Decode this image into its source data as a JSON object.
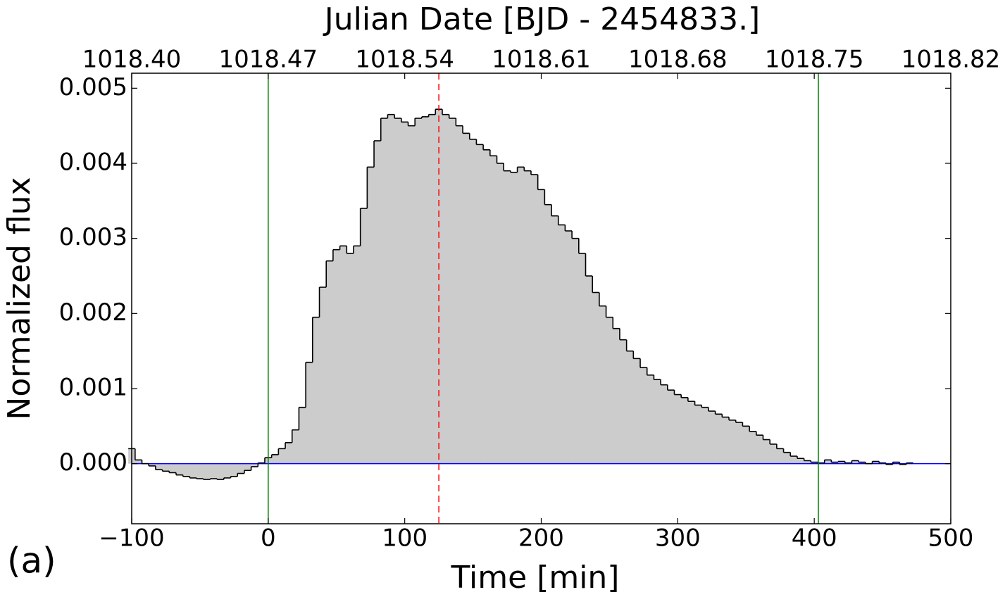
{
  "chart_data": {
    "type": "step",
    "title": "Julian Date [BJD - 2454833.]",
    "xlabel": "Time [min]",
    "ylabel": "Normalized flux",
    "panel_label": "(a)",
    "line_color": "#000000",
    "fill_color": "#cccccc",
    "xlim": [
      -100,
      500
    ],
    "ylim": [
      -0.0008,
      0.0052
    ],
    "x2lim": [
      1018.4,
      1018.82
    ],
    "xticks": [
      {
        "value": -100,
        "label": "−100"
      },
      0,
      100,
      200,
      300,
      400,
      500
    ],
    "x2ticks": [
      {
        "value": 1018.4,
        "label": "1018.40"
      },
      {
        "value": 1018.47,
        "label": "1018.47"
      },
      {
        "value": 1018.54,
        "label": "1018.54"
      },
      {
        "value": 1018.61,
        "label": "1018.61"
      },
      {
        "value": 1018.68,
        "label": "1018.68"
      },
      {
        "value": 1018.75,
        "label": "1018.75"
      },
      {
        "value": 1018.82,
        "label": "1018.82"
      }
    ],
    "yticks": [
      {
        "value": 0,
        "label": "0.000"
      },
      {
        "value": 0.001,
        "label": "0.001"
      },
      {
        "value": 0.002,
        "label": "0.002"
      },
      {
        "value": 0.003,
        "label": "0.003"
      },
      {
        "value": 0.004,
        "label": "0.004"
      },
      {
        "value": 0.005,
        "label": "0.005"
      }
    ],
    "vlines": [
      {
        "x": 0,
        "color": "#008000",
        "style": "solid"
      },
      {
        "x": 403,
        "color": "#008000",
        "style": "solid"
      },
      {
        "x": 125,
        "color": "#ff0000",
        "style": "dashed"
      }
    ],
    "hlines": [
      {
        "y": 0,
        "color": "#0000ff",
        "style": "solid"
      }
    ],
    "x": [
      -100,
      -95,
      -90,
      -85,
      -80,
      -75,
      -70,
      -65,
      -60,
      -55,
      -50,
      -45,
      -40,
      -35,
      -30,
      -25,
      -20,
      -15,
      -10,
      -5,
      0,
      5,
      10,
      15,
      20,
      25,
      30,
      35,
      40,
      45,
      50,
      55,
      60,
      65,
      70,
      75,
      80,
      85,
      90,
      95,
      100,
      105,
      110,
      115,
      120,
      125,
      130,
      135,
      140,
      145,
      150,
      155,
      160,
      165,
      170,
      175,
      180,
      185,
      190,
      195,
      200,
      205,
      210,
      215,
      220,
      225,
      230,
      235,
      240,
      245,
      250,
      255,
      260,
      265,
      270,
      275,
      280,
      285,
      290,
      295,
      300,
      305,
      310,
      315,
      320,
      325,
      330,
      335,
      340,
      345,
      350,
      355,
      360,
      365,
      370,
      375,
      380,
      385,
      390,
      395,
      400,
      405,
      410,
      415,
      420,
      425,
      430,
      435,
      440,
      445,
      450,
      455,
      460,
      465,
      470
    ],
    "values": [
      0.0002,
      5e-05,
      0.0,
      -3e-05,
      -8e-05,
      -0.0001,
      -0.00012,
      -0.00015,
      -0.00017,
      -0.00019,
      -0.0002,
      -0.00021,
      -0.0002,
      -0.00021,
      -0.00019,
      -0.00017,
      -0.00013,
      -9e-05,
      -4e-05,
      1e-05,
      8e-05,
      0.00012,
      0.0002,
      0.00028,
      0.00045,
      0.00075,
      0.00135,
      0.00195,
      0.00235,
      0.0027,
      0.00285,
      0.0029,
      0.0028,
      0.0029,
      0.0034,
      0.00395,
      0.0043,
      0.0046,
      0.00465,
      0.0046,
      0.00455,
      0.0045,
      0.0046,
      0.00462,
      0.00465,
      0.00472,
      0.00465,
      0.0046,
      0.0045,
      0.0044,
      0.00432,
      0.00425,
      0.00418,
      0.0041,
      0.004,
      0.0039,
      0.00388,
      0.00395,
      0.0039,
      0.00385,
      0.00365,
      0.00345,
      0.0033,
      0.00318,
      0.0031,
      0.003,
      0.0028,
      0.0025,
      0.00228,
      0.0021,
      0.00195,
      0.0018,
      0.00165,
      0.0015,
      0.0014,
      0.00128,
      0.00118,
      0.00112,
      0.00105,
      0.00098,
      0.00092,
      0.00088,
      0.00083,
      0.00078,
      0.00075,
      0.0007,
      0.00066,
      0.00062,
      0.00058,
      0.00055,
      0.0005,
      0.00043,
      0.00038,
      0.00032,
      0.00026,
      0.0002,
      0.00015,
      0.0001,
      7e-05,
      4e-05,
      2e-05,
      1e-05,
      5e-05,
      2e-05,
      3e-05,
      1e-05,
      4e-05,
      2e-05,
      0.0,
      3e-05,
      1e-05,
      -1e-05,
      2e-05,
      -1e-05,
      1e-05
    ]
  }
}
